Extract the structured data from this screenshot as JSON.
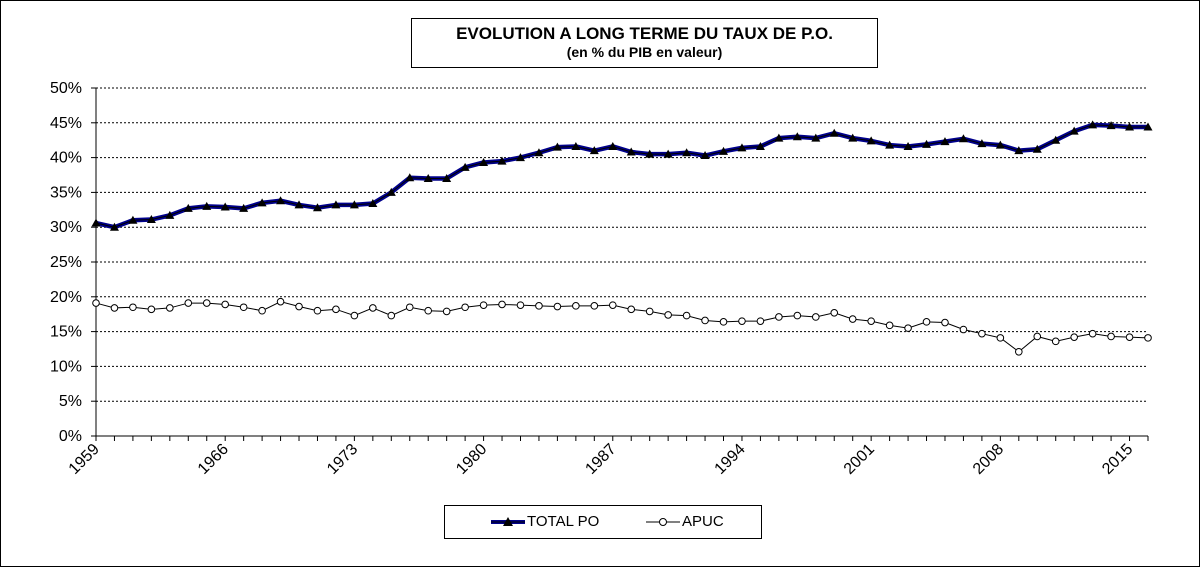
{
  "chart_data": {
    "type": "line",
    "title": "EVOLUTION A LONG TERME DU TAUX DE P.O.",
    "subtitle": "(en %  du PIB en valeur)",
    "xlabel": "",
    "ylabel": "",
    "ylim": [
      0,
      50
    ],
    "y_ticks": [
      "0%",
      "5%",
      "10%",
      "15%",
      "20%",
      "25%",
      "30%",
      "35%",
      "40%",
      "45%",
      "50%"
    ],
    "x_tick_labels": [
      "1959",
      "1966",
      "1973",
      "1980",
      "1987",
      "1994",
      "2001",
      "2008",
      "2015"
    ],
    "x": [
      1959,
      1960,
      1961,
      1962,
      1963,
      1964,
      1965,
      1966,
      1967,
      1968,
      1969,
      1970,
      1971,
      1972,
      1973,
      1974,
      1975,
      1976,
      1977,
      1978,
      1979,
      1980,
      1981,
      1982,
      1983,
      1984,
      1985,
      1986,
      1987,
      1988,
      1989,
      1990,
      1991,
      1992,
      1993,
      1994,
      1995,
      1996,
      1997,
      1998,
      1999,
      2000,
      2001,
      2002,
      2003,
      2004,
      2005,
      2006,
      2007,
      2008,
      2009,
      2010,
      2011,
      2012,
      2013,
      2014,
      2015,
      2016
    ],
    "grid": true,
    "legend_position": "bottom",
    "series": [
      {
        "name": "TOTAL PO",
        "color": "#00008b",
        "marker": "triangle",
        "values": [
          30.6,
          30.0,
          31.0,
          31.1,
          31.7,
          32.7,
          33.0,
          32.9,
          32.7,
          33.5,
          33.8,
          33.2,
          32.8,
          33.2,
          33.2,
          33.4,
          35.0,
          37.1,
          37.0,
          37.0,
          38.6,
          39.3,
          39.5,
          40.0,
          40.7,
          41.5,
          41.6,
          41.0,
          41.6,
          40.8,
          40.5,
          40.5,
          40.7,
          40.3,
          40.9,
          41.4,
          41.6,
          42.8,
          43.0,
          42.8,
          43.5,
          42.8,
          42.4,
          41.8,
          41.6,
          41.9,
          42.3,
          42.7,
          42.0,
          41.8,
          41.0,
          41.2,
          42.5,
          43.8,
          44.7,
          44.6,
          44.4,
          44.4
        ]
      },
      {
        "name": "APUC",
        "color": "#000000",
        "marker": "circle-open",
        "values": [
          19.1,
          18.4,
          18.5,
          18.2,
          18.4,
          19.1,
          19.1,
          18.9,
          18.5,
          18.0,
          19.3,
          18.6,
          18.0,
          18.2,
          17.3,
          18.4,
          17.3,
          18.5,
          18.0,
          17.9,
          18.5,
          18.8,
          18.9,
          18.8,
          18.7,
          18.6,
          18.7,
          18.7,
          18.8,
          18.2,
          17.9,
          17.4,
          17.3,
          16.6,
          16.4,
          16.5,
          16.5,
          17.1,
          17.3,
          17.1,
          17.7,
          16.8,
          16.5,
          15.9,
          15.5,
          16.4,
          16.3,
          15.3,
          14.7,
          14.1,
          12.1,
          14.3,
          13.6,
          14.2,
          14.7,
          14.3,
          14.2,
          14.1
        ]
      }
    ]
  }
}
